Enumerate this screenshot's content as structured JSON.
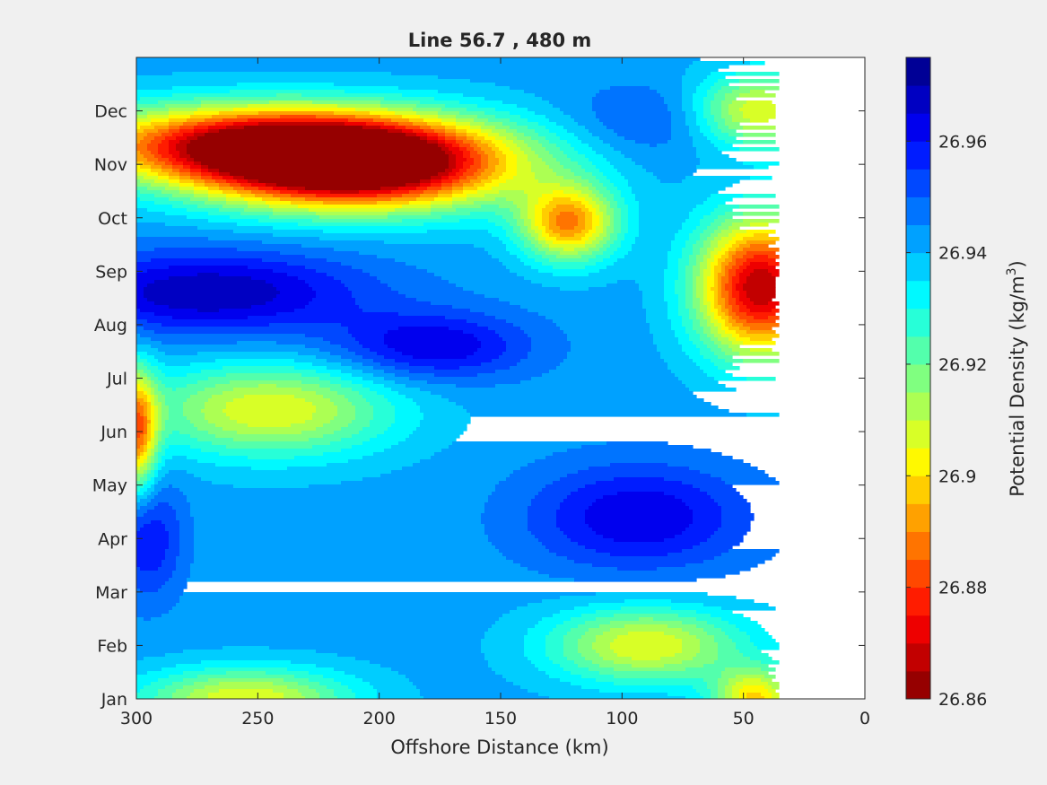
{
  "chart_data": {
    "type": "heatmap",
    "style": "filled-contour",
    "title": "Line 56.7 , 480 m",
    "xlabel": "Offshore Distance (km)",
    "ylabel": "",
    "x_reversed": true,
    "xlim": [
      300,
      0
    ],
    "xticks": [
      300,
      250,
      200,
      150,
      100,
      50,
      0
    ],
    "yticks": [
      "Jan",
      "Feb",
      "Mar",
      "Apr",
      "May",
      "Jun",
      "Jul",
      "Aug",
      "Sep",
      "Oct",
      "Nov",
      "Dec"
    ],
    "data_extent_km": [
      300,
      35
    ],
    "colorbar": {
      "label": "Potential Density (kg/m",
      "label_superscript": "3",
      "label_suffix": ")",
      "range": [
        26.86,
        26.975
      ],
      "levels": 23,
      "colormap": "jet",
      "tick_labels": [
        "26.86",
        "26.88",
        "26.9",
        "26.92",
        "26.94",
        "26.96"
      ],
      "tick_values": [
        26.86,
        26.88,
        26.9,
        26.92,
        26.94,
        26.96
      ]
    },
    "field": {
      "background": 26.942,
      "features": [
        {
          "name": "Nov high-density core",
          "x_km": 210,
          "month": 10.9,
          "value": 26.86
        },
        {
          "name": "Nov-Dec band",
          "x_km": 245,
          "month": 11.4,
          "value": 26.87
        },
        {
          "name": "Oct patch",
          "x_km": 122,
          "month": 9.9,
          "value": 26.89
        },
        {
          "name": "Sep coastal core",
          "x_km": 43,
          "month": 8.7,
          "value": 26.865
        },
        {
          "name": "Sep offshore low",
          "x_km": 270,
          "month": 8.6,
          "value": 26.97
        },
        {
          "name": "Aug low",
          "x_km": 178,
          "month": 7.6,
          "value": 26.965
        },
        {
          "name": "Jun-Jul yellow patch",
          "x_km": 245,
          "month": 6.4,
          "value": 26.905
        },
        {
          "name": "Jun offshore edge",
          "x_km": 300,
          "month": 6.0,
          "value": 26.89
        },
        {
          "name": "May low",
          "x_km": 93,
          "month": 4.4,
          "value": 26.965
        },
        {
          "name": "Apr offshore low",
          "x_km": 295,
          "month": 4.0,
          "value": 26.96
        },
        {
          "name": "Feb yellow patch",
          "x_km": 90,
          "month": 2.0,
          "value": 26.905
        },
        {
          "name": "Jan yellow patch",
          "x_km": 255,
          "month": 1.0,
          "value": 26.905
        },
        {
          "name": "Jan coastal patch",
          "x_km": 45,
          "month": 1.0,
          "value": 26.9
        },
        {
          "name": "Dec coastal",
          "x_km": 45,
          "month": 12.0,
          "value": 26.905
        },
        {
          "name": "Dec low",
          "x_km": 88,
          "month": 11.8,
          "value": 26.952
        }
      ]
    }
  }
}
